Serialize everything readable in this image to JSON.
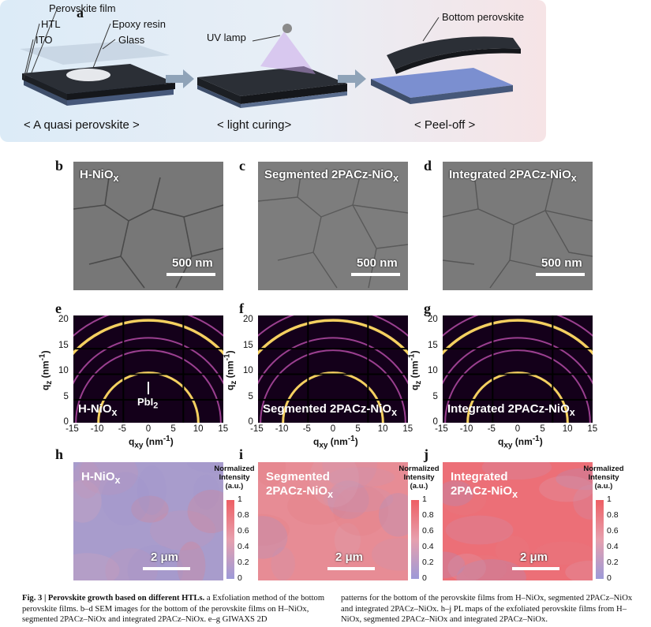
{
  "panel_labels": {
    "a": "a",
    "b": "b",
    "c": "c",
    "d": "d",
    "e": "e",
    "f": "f",
    "g": "g",
    "h": "h",
    "i": "i",
    "j": "j"
  },
  "panel_a": {
    "layers": {
      "perovskite_film": "Perovskite film",
      "htl": "HTL",
      "ito": "ITO",
      "epoxy": "Epoxy resin",
      "glass": "Glass",
      "uv_lamp": "UV lamp",
      "bottom_perovskite": "Bottom perovskite"
    },
    "steps": [
      "< A quasi perovskite >",
      "< light curing>",
      "< Peel-off >"
    ],
    "colors": {
      "substrate": "#5a6d8e",
      "film": "#2b2f36",
      "glass": "#c6d3e2",
      "blue_layer": "#7b8fd0",
      "uv_beam": "#c9a2e8"
    }
  },
  "sem": [
    {
      "title": "H-NiO",
      "sub": "x",
      "scale": "500 nm"
    },
    {
      "title": "Segmented 2PACz-NiO",
      "sub": "x",
      "scale": "500 nm"
    },
    {
      "title": "Integrated 2PACz-NiO",
      "sub": "x",
      "scale": "500 nm"
    }
  ],
  "giwaxs": {
    "x_ticks": [
      "-15",
      "-10",
      "-5",
      "0",
      "5",
      "10",
      "15"
    ],
    "y_ticks": [
      "0",
      "5",
      "10",
      "15",
      "20"
    ],
    "xlabel": "q",
    "xlabel_sub": "xy",
    "xlabel_unit": " (nm",
    "xlabel_exp": "-1",
    "xlabel_end": ")",
    "ylabel": "q",
    "ylabel_sub": "z",
    "ylabel_unit": " (nm",
    "ylabel_exp": "-1",
    "ylabel_end": ")",
    "panels": [
      {
        "title": "H-NiO",
        "sub": "x",
        "annotation": "PbI",
        "annotation_sub": "2"
      },
      {
        "title": "Segmented 2PACz-NiO",
        "sub": "x"
      },
      {
        "title": "Integrated 2PACz-NiO",
        "sub": "x"
      }
    ],
    "colors": {
      "bg": "#14001a",
      "ring": "#f4d060",
      "ring_faint": "#9a3f8f"
    }
  },
  "pl": {
    "panels": [
      {
        "line1": "H-NiO",
        "sub": "x",
        "line2": "",
        "scale": "2 μm",
        "base": "#a89ccc"
      },
      {
        "line1": "Segmented",
        "line2": "2PACz-NiO",
        "sub": "x",
        "scale": "2 μm",
        "base": "#e78c95"
      },
      {
        "line1": "Integrated",
        "line2": "2PACz-NiO",
        "sub": "x",
        "scale": "2 μm",
        "base": "#ec6f77"
      }
    ],
    "colorbar": {
      "title1": "Normalized",
      "title2": "Intensity",
      "title3": "(a.u.)",
      "ticks": [
        "1",
        "0.8",
        "0.6",
        "0.4",
        "0.2",
        "0"
      ]
    }
  },
  "caption": {
    "fig": "Fig. 3 | Perovskite growth based on different HTLs.",
    "left": " a Exfoliation method of the bottom perovskite films. b–d SEM images for the bottom of the perovskite films on H–NiOx, segmented 2PACz–NiOx and integrated 2PACz–NiOx. e–g GIWAXS 2D",
    "right": "patterns for the bottom of the perovskite films from H–NiOx, segmented 2PACz–NiOx and integrated 2PACz–NiOx. h–j PL maps of the exfoliated perovskite films from H–NiOx, segmented 2PACz–NiOx and integrated 2PACz–NiOx."
  }
}
